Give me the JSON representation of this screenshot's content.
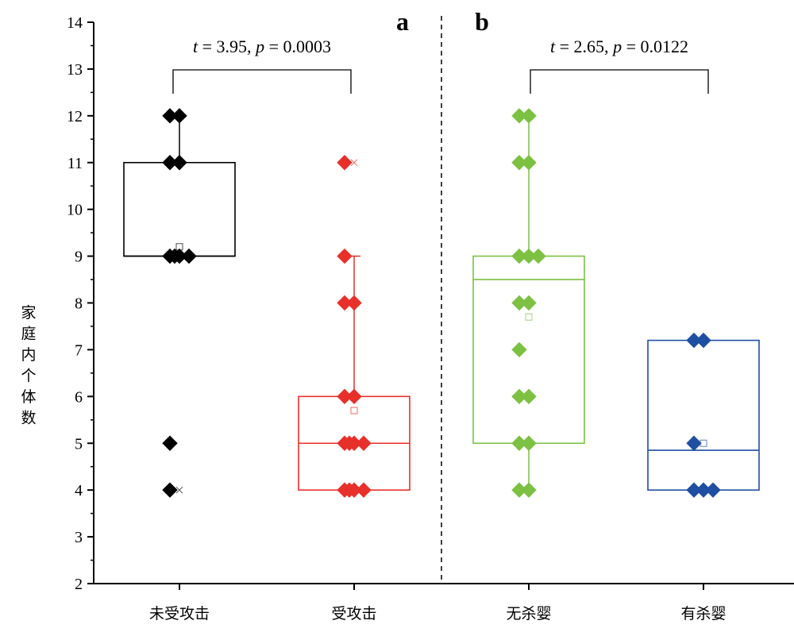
{
  "chart_data": {
    "type": "box",
    "ylabel": "家庭内个体数",
    "ylim": [
      2,
      14
    ],
    "yticks": [
      2,
      3,
      4,
      5,
      6,
      7,
      8,
      9,
      10,
      11,
      12,
      13,
      14
    ],
    "panels": [
      {
        "label": "a",
        "stat_text": "t = 3.95, p = 0.0003",
        "stat_t": 3.95,
        "stat_p": 0.0003
      },
      {
        "label": "b",
        "stat_text": "t = 2.65, p = 0.0122",
        "stat_t": 2.65,
        "stat_p": 0.0122
      }
    ],
    "groups": [
      {
        "name": "未受攻击",
        "color": "#000000",
        "panel": "a",
        "box": {
          "q1": 9,
          "median": 9,
          "q3": 11,
          "whisker_low": 9,
          "whisker_high": 12,
          "mean": 9.2
        },
        "outlier_marks": [
          4
        ],
        "points": [
          12,
          12,
          11,
          11,
          9,
          9,
          9,
          9,
          5,
          4
        ]
      },
      {
        "name": "受攻击",
        "color": "#e8302a",
        "panel": "a",
        "box": {
          "q1": 4,
          "median": 5,
          "q3": 6,
          "whisker_low": 4,
          "whisker_high": 9,
          "mean": 5.7
        },
        "outlier_marks": [
          11
        ],
        "points": [
          11,
          9,
          8,
          8,
          6,
          6,
          5,
          5,
          5,
          5,
          4,
          4,
          4,
          4
        ]
      },
      {
        "name": "无杀婴",
        "color": "#7cc142",
        "panel": "b",
        "box": {
          "q1": 5,
          "median": 8.5,
          "q3": 9,
          "whisker_low": 4,
          "whisker_high": 12,
          "mean": 7.7
        },
        "outlier_marks": [],
        "points": [
          12,
          12,
          11,
          11,
          9,
          9,
          9,
          8,
          8,
          7,
          6,
          6,
          5,
          5,
          4,
          4
        ]
      },
      {
        "name": "有杀婴",
        "color": "#1f4fa3",
        "panel": "b",
        "box": {
          "q1": 4,
          "median": 4.85,
          "q3": 7.2,
          "whisker_low": 4,
          "whisker_high": 7.2,
          "mean": 5.0
        },
        "outlier_marks": [],
        "points": [
          7.2,
          7.2,
          5,
          4,
          4,
          4
        ]
      }
    ]
  }
}
